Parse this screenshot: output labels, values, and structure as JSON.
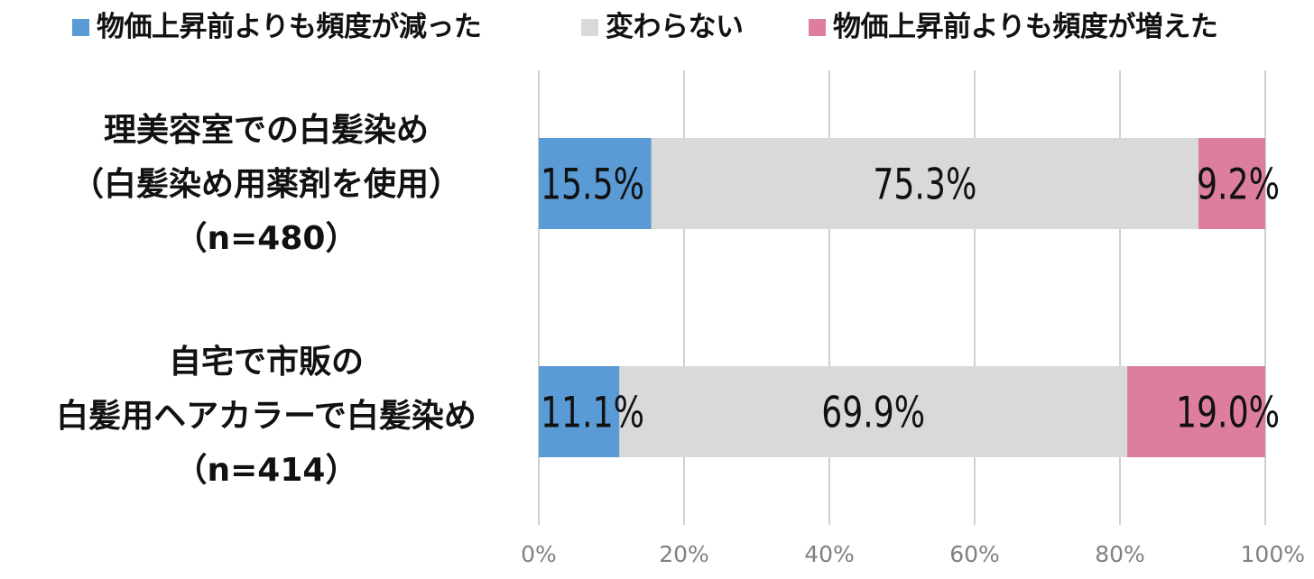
{
  "chart_data": {
    "type": "bar",
    "orientation": "horizontal",
    "stacked": true,
    "title": "",
    "xlabel": "",
    "ylabel": "",
    "xlim": [
      0,
      100
    ],
    "grid": true,
    "legend_position": "top",
    "x_ticks": [
      "0%",
      "20%",
      "40%",
      "60%",
      "80%",
      "100%"
    ],
    "categories": [
      {
        "lines": [
          "理美容室での白髪染め",
          "（白髪染め用薬剤を使用）",
          "（n=480）"
        ]
      },
      {
        "lines": [
          "自宅で市販の",
          "白髪用ヘアカラーで白髪染め",
          "（n=414）"
        ]
      }
    ],
    "series": [
      {
        "name": "物価上昇前よりも頻度が減った",
        "color": "#5b9bd5",
        "values": [
          15.5,
          11.1
        ],
        "labels": [
          "15.5%",
          "11.1%"
        ]
      },
      {
        "name": "変わらない",
        "color": "#d9d9d9",
        "values": [
          75.3,
          69.9
        ],
        "labels": [
          "75.3%",
          "69.9%"
        ]
      },
      {
        "name": "物価上昇前よりも頻度が増えた",
        "color": "#dd7e9e",
        "values": [
          9.2,
          19.0
        ],
        "labels": [
          "9.2%",
          "19.0%"
        ]
      }
    ]
  }
}
